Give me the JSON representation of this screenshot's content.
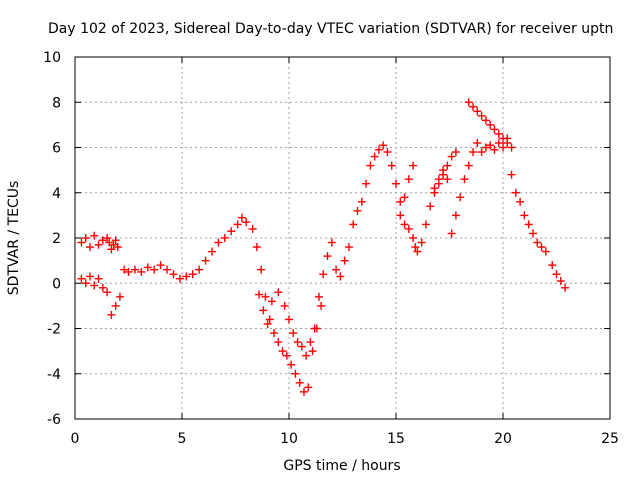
{
  "chart_data": {
    "type": "scatter",
    "title": "Day 102 of 2023, Sidereal Day-to-day VTEC variation (SDTVAR) for receiver uptn",
    "xlabel": "GPS time / hours",
    "ylabel": "SDTVAR / TECUs",
    "xlim": [
      0,
      25
    ],
    "ylim": [
      -6,
      10
    ],
    "xticks": [
      0,
      5,
      10,
      15,
      20,
      25
    ],
    "yticks": [
      -6,
      -4,
      -2,
      0,
      2,
      4,
      6,
      8,
      10
    ],
    "xtick_labels": [
      "0",
      "5",
      "10",
      "15",
      "20",
      "25"
    ],
    "ytick_labels": [
      "-6",
      "-4",
      "-2",
      "0",
      "2",
      "4",
      "6",
      "8",
      "10"
    ],
    "grid": true,
    "marker": "+",
    "color": "#ff0000",
    "series": [
      {
        "x": [
          0.3,
          0.5,
          0.7,
          0.9,
          1.1,
          1.3,
          1.5,
          1.6,
          1.7,
          1.8,
          1.9,
          2.0,
          0.3,
          0.5,
          0.7,
          0.9,
          1.1,
          1.3,
          1.5,
          1.7,
          1.9,
          2.1,
          2.3,
          2.5,
          2.8,
          3.1,
          3.4,
          3.7,
          4.0,
          4.3,
          4.6,
          4.9,
          5.2,
          5.5,
          5.8,
          6.1,
          6.4,
          6.7,
          7.0,
          7.3,
          7.6,
          7.8,
          8.0,
          8.3,
          8.5,
          8.7,
          8.9,
          9.1,
          9.3,
          9.5,
          9.7,
          9.9,
          10.1,
          10.3,
          10.5,
          10.7,
          10.9,
          11.1,
          11.3,
          11.5,
          8.6,
          8.8,
          9.0,
          9.2,
          9.5,
          9.8,
          10.0,
          10.2,
          10.4,
          10.6,
          10.8,
          11.0,
          11.2,
          11.4,
          11.6,
          11.8,
          12.0,
          12.2,
          12.4,
          12.6,
          12.8,
          13.0,
          13.2,
          13.4,
          13.6,
          13.8,
          14.0,
          14.2,
          14.4,
          14.6,
          14.8,
          15.0,
          15.2,
          15.4,
          15.6,
          15.8,
          15.2,
          15.4,
          15.6,
          15.8,
          15.9,
          16.0,
          16.2,
          16.4,
          16.6,
          16.8,
          17.0,
          17.2,
          17.4,
          17.6,
          17.8,
          16.8,
          17.0,
          17.2,
          17.4,
          17.6,
          17.8,
          18.0,
          18.2,
          18.4,
          18.6,
          18.8,
          19.0,
          19.2,
          19.4,
          19.6,
          19.8,
          20.0,
          20.2,
          20.4,
          20.6,
          20.8,
          21.0,
          21.2,
          21.4,
          21.6,
          21.8,
          22.0,
          18.4,
          18.6,
          18.8,
          19.0,
          19.2,
          19.4,
          19.6,
          19.8,
          20.0,
          20.2,
          20.4,
          22.3,
          22.5,
          22.7,
          22.9
        ],
        "y": [
          1.8,
          2.0,
          1.6,
          2.1,
          1.7,
          1.9,
          2.0,
          1.8,
          1.5,
          1.7,
          1.9,
          1.6,
          0.2,
          0.0,
          0.3,
          -0.1,
          0.2,
          -0.2,
          -0.4,
          -1.4,
          -1.0,
          -0.6,
          0.6,
          0.5,
          0.6,
          0.5,
          0.7,
          0.6,
          0.8,
          0.6,
          0.4,
          0.2,
          0.3,
          0.4,
          0.6,
          1.0,
          1.4,
          1.8,
          2.0,
          2.3,
          2.6,
          2.9,
          2.7,
          2.4,
          1.6,
          0.6,
          -0.6,
          -1.6,
          -2.2,
          -2.6,
          -3.0,
          -3.2,
          -3.6,
          -4.0,
          -4.4,
          -4.8,
          -4.6,
          -3.0,
          -2.0,
          -1.0,
          -0.5,
          -1.2,
          -1.8,
          -0.8,
          -0.4,
          -1.0,
          -1.6,
          -2.2,
          -2.6,
          -2.8,
          -3.2,
          -2.6,
          -2.0,
          -0.6,
          0.4,
          1.2,
          1.8,
          0.6,
          0.3,
          1.0,
          1.6,
          2.6,
          3.2,
          3.6,
          4.4,
          5.2,
          5.6,
          5.9,
          6.1,
          5.8,
          5.2,
          4.4,
          3.6,
          3.8,
          4.6,
          5.2,
          3.0,
          2.6,
          2.4,
          2.0,
          1.6,
          1.4,
          1.8,
          2.6,
          3.4,
          4.0,
          4.4,
          4.8,
          5.2,
          5.6,
          5.8,
          4.2,
          4.6,
          5.0,
          4.6,
          2.2,
          3.0,
          3.8,
          4.6,
          5.2,
          5.8,
          6.2,
          5.8,
          6.0,
          6.1,
          5.9,
          6.2,
          6.0,
          6.4,
          4.8,
          4.0,
          3.6,
          3.0,
          2.6,
          2.2,
          1.8,
          1.6,
          1.4,
          8.0,
          7.8,
          7.6,
          7.4,
          7.2,
          7.0,
          6.8,
          6.6,
          6.4,
          6.2,
          6.0,
          0.8,
          0.4,
          0.1,
          -0.2
        ]
      }
    ]
  }
}
